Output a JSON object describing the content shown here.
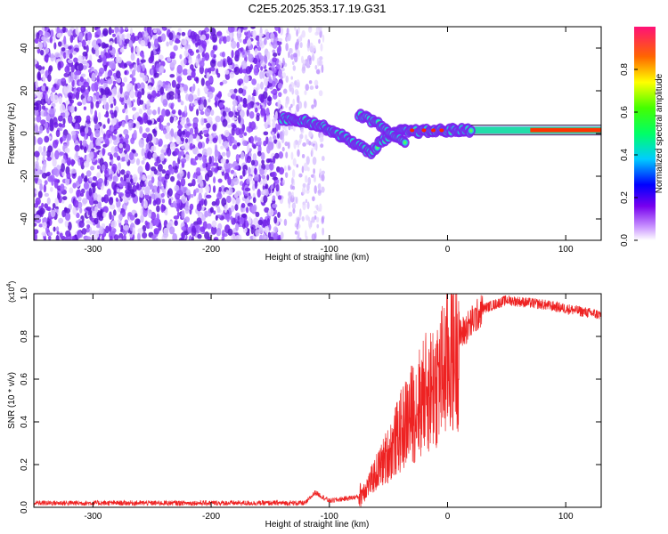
{
  "figure": {
    "title": "C2E5.2025.353.17.19.G31"
  },
  "chart_data": [
    {
      "id": "spectrogram",
      "type": "heatmap",
      "title": "C2E5.2025.353.17.19.G31",
      "xlabel": "Height of straight line (km)",
      "ylabel": "Frequency (Hz)",
      "xlim": [
        -350,
        130
      ],
      "ylim": [
        -50,
        50
      ],
      "xticks": [
        -300,
        -200,
        -100,
        0,
        100
      ],
      "yticks": [
        -40,
        -20,
        0,
        20,
        40
      ],
      "colorbar": {
        "label": "Normalized spectral amplitude",
        "range": [
          0,
          1
        ],
        "ticks": [
          "0.0",
          "0.2",
          "0.4",
          "0.6",
          "0.8"
        ]
      },
      "features": {
        "noise_region_km": [
          -350,
          -140
        ],
        "sparse_region_km": [
          -140,
          -105
        ],
        "signal_track": [
          {
            "x": -140,
            "f": 7
          },
          {
            "x": -120,
            "f": 6
          },
          {
            "x": -100,
            "f": 2
          },
          {
            "x": -80,
            "f": -4
          },
          {
            "x": -65,
            "f": -9
          },
          {
            "x": -55,
            "f": -3
          },
          {
            "x": -40,
            "f": 1
          },
          {
            "x": -20,
            "f": 1
          },
          {
            "x": 0,
            "f": 1.5
          },
          {
            "x": 60,
            "f": 1.5
          },
          {
            "x": 130,
            "f": 1.5
          }
        ],
        "second_track": [
          {
            "x": -75,
            "f": 9
          },
          {
            "x": -60,
            "f": 5
          },
          {
            "x": -45,
            "f": -1
          },
          {
            "x": -35,
            "f": -5
          }
        ]
      }
    },
    {
      "id": "snr",
      "type": "line",
      "xlabel": "Height of straight line (km)",
      "ylabel": "SNR (10 * v/v)",
      "multiplier": "(x10",
      "multiplier_exp": "4",
      "multiplier_close": ")",
      "xlim": [
        -350,
        130
      ],
      "ylim": [
        0,
        1.0
      ],
      "xticks": [
        -300,
        -200,
        -100,
        0,
        100
      ],
      "yticks": [
        "0.0",
        "0.2",
        "0.4",
        "0.6",
        "0.8",
        "1.0"
      ],
      "color": "#ee2222",
      "envelope": [
        {
          "x": -350,
          "y": 0.02
        },
        {
          "x": -120,
          "y": 0.02
        },
        {
          "x": -112,
          "y": 0.07
        },
        {
          "x": -100,
          "y": 0.03
        },
        {
          "x": -75,
          "y": 0.05
        },
        {
          "x": -65,
          "y": 0.12
        },
        {
          "x": -50,
          "y": 0.25
        },
        {
          "x": -35,
          "y": 0.4
        },
        {
          "x": -20,
          "y": 0.52
        },
        {
          "x": -5,
          "y": 0.62
        },
        {
          "x": 10,
          "y": 0.8
        },
        {
          "x": 30,
          "y": 0.93
        },
        {
          "x": 50,
          "y": 0.97
        },
        {
          "x": 80,
          "y": 0.95
        },
        {
          "x": 130,
          "y": 0.9
        }
      ]
    }
  ]
}
